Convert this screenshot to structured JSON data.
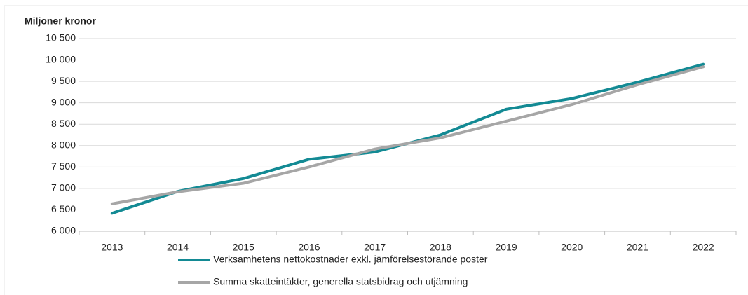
{
  "chart_data": {
    "type": "line",
    "ylabel": "Miljoner kronor",
    "categories": [
      "2013",
      "2014",
      "2015",
      "2016",
      "2017",
      "2018",
      "2019",
      "2020",
      "2021",
      "2022"
    ],
    "series": [
      {
        "name": "Verksamhetens nettokostnader exkl. jämförelsestörande poster",
        "color": "#138a94",
        "values": [
          6420,
          6930,
          7230,
          7680,
          7850,
          8250,
          8850,
          9100,
          9480,
          9900
        ]
      },
      {
        "name": "Summa skatteintäkter, generella statsbidrag och utjämning",
        "color": "#a6a6a6",
        "values": [
          6640,
          6920,
          7120,
          7500,
          7920,
          8180,
          8570,
          8960,
          9420,
          9840
        ]
      }
    ],
    "ylim": [
      6000,
      10500
    ],
    "yticks": [
      {
        "value": 6000,
        "label": "6 000"
      },
      {
        "value": 6500,
        "label": "6 500"
      },
      {
        "value": 7000,
        "label": "7 000"
      },
      {
        "value": 7500,
        "label": "7 500"
      },
      {
        "value": 8000,
        "label": "8 000"
      },
      {
        "value": 8500,
        "label": "8 500"
      },
      {
        "value": 9000,
        "label": "9 000"
      },
      {
        "value": 9500,
        "label": "9 500"
      },
      {
        "value": 10000,
        "label": "10 000"
      },
      {
        "value": 10500,
        "label": "10 500"
      }
    ],
    "grid": true
  }
}
